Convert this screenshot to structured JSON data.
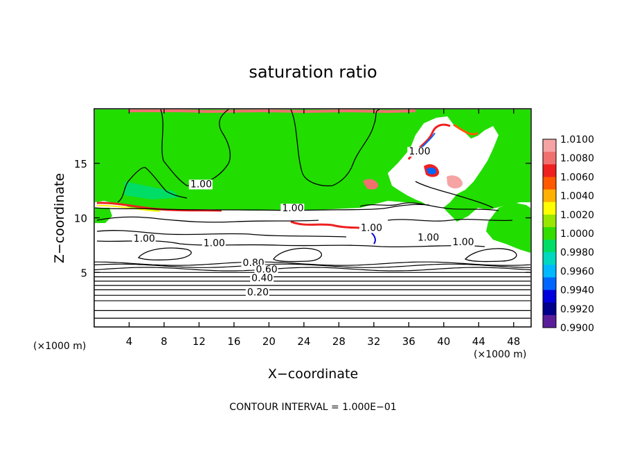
{
  "chart_data": {
    "type": "heatmap",
    "title": "saturation ratio",
    "xlabel": "X−coordinate",
    "ylabel": "Z−coordinate",
    "x_unit_left": "(×1000 m)",
    "x_unit_right": "(×1000 m)",
    "xlim": [
      0,
      50
    ],
    "ylim": [
      0,
      20
    ],
    "x_ticks": [
      4,
      8,
      12,
      16,
      20,
      24,
      28,
      32,
      36,
      40,
      44,
      48
    ],
    "y_ticks": [
      5,
      10,
      15
    ],
    "footer": "CONTOUR INTERVAL = 1.000E−01",
    "colorbar": {
      "labels": [
        "1.0100",
        "1.0080",
        "1.0060",
        "1.0040",
        "1.0020",
        "1.0000",
        "0.9980",
        "0.9960",
        "0.9940",
        "0.9920",
        "0.9900"
      ],
      "colors": [
        "#f5a3a3",
        "#f07070",
        "#ee2020",
        "#ff5a00",
        "#ffb000",
        "#ffff00",
        "#99e600",
        "#33dd00",
        "#00dd66",
        "#00d8c0",
        "#00b8ff",
        "#0066ff",
        "#0000dd",
        "#00008a",
        "#5a1e9a"
      ]
    },
    "contour_labels": [
      {
        "text": "1.00",
        "x": 11,
        "z": 12.8
      },
      {
        "text": "1.00",
        "x": 21.5,
        "z": 10.6
      },
      {
        "text": "1.00",
        "x": 30.5,
        "z": 8.8
      },
      {
        "text": "1.00",
        "x": 37,
        "z": 7.9
      },
      {
        "text": "1.00",
        "x": 41,
        "z": 7.5
      },
      {
        "text": "1.00",
        "x": 36,
        "z": 15.8
      },
      {
        "text": "1.00",
        "x": 4.5,
        "z": 7.8
      },
      {
        "text": "1.00",
        "x": 12.5,
        "z": 7.4
      },
      {
        "text": "0.80",
        "x": 17,
        "z": 5.6
      },
      {
        "text": "0.60",
        "x": 18.5,
        "z": 5.0
      },
      {
        "text": "0.40",
        "x": 18,
        "z": 4.2
      },
      {
        "text": "0.20",
        "x": 17.5,
        "z": 2.9
      }
    ],
    "background_value": 1.0,
    "cloud_top_z": 10.6,
    "stratified_contour_z": [
      0.8,
      1.5,
      2.4,
      2.9,
      3.4,
      3.8,
      4.2,
      4.6,
      5.0,
      5.3,
      5.6,
      5.8
    ]
  }
}
